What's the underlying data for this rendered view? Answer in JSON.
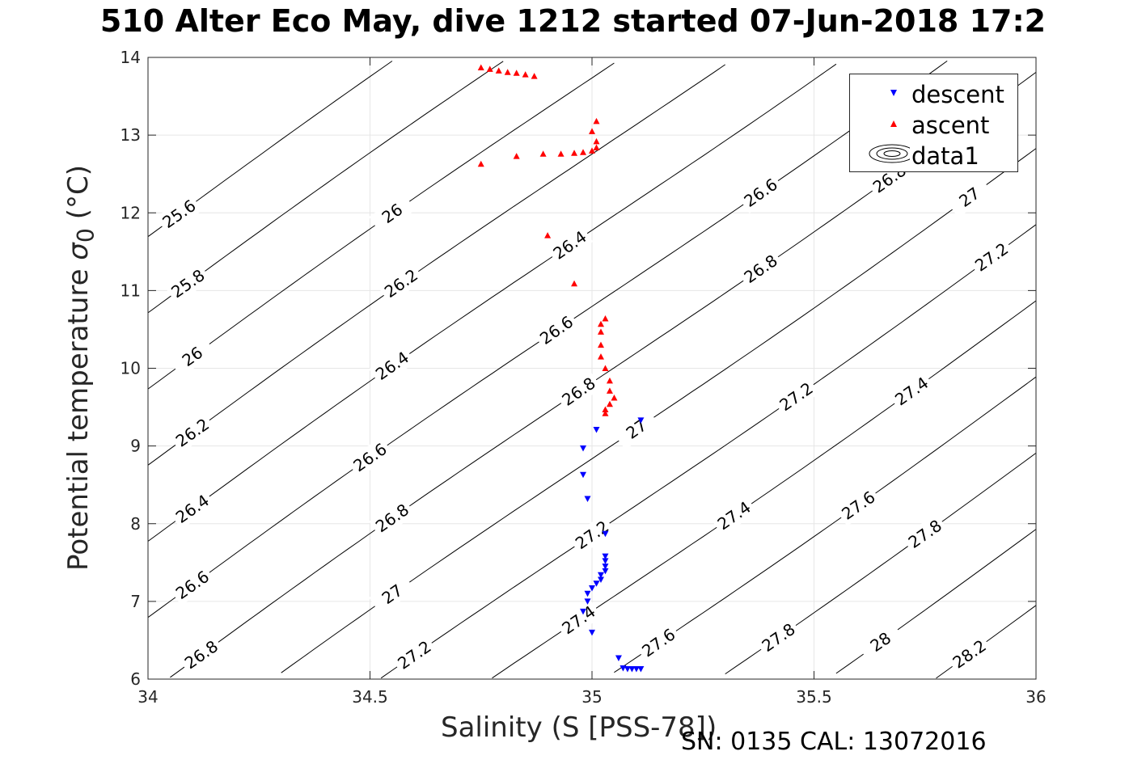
{
  "title": "510 Alter Eco May, dive 1212 started 07-Jun-2018 17:2",
  "footer": "SN: 0135  CAL: 13072016",
  "chart_data": {
    "type": "scatter",
    "title": "510 Alter Eco May, dive 1212 started 07-Jun-2018 17:2",
    "xlabel": "Salinity (S [PSS-78])",
    "ylabel_prefix": "Potential temperature ",
    "ylabel_sigma": "σ",
    "ylabel_sub": "0",
    "ylabel_suffix": " (°C)",
    "xlim": [
      34,
      36
    ],
    "ylim": [
      6,
      14
    ],
    "xticks": [
      "34",
      "34.5",
      "35",
      "35.5",
      "36"
    ],
    "yticks": [
      "6",
      "7",
      "8",
      "9",
      "10",
      "11",
      "12",
      "13",
      "14"
    ],
    "grid": true,
    "legend_position": "top-right",
    "colors": {
      "descent": "#0000ff",
      "ascent": "#ff0000",
      "contour": "#000000"
    },
    "series": [
      {
        "name": "descent",
        "marker": "triangle-down",
        "x": [
          35.11,
          35.01,
          34.98,
          34.98,
          34.99,
          35.03,
          35.03,
          35.03,
          35.03,
          35.03,
          35.02,
          35.02,
          35.01,
          35.0,
          34.99,
          34.99,
          34.98,
          35.0,
          35.06,
          35.07,
          35.08,
          35.09,
          35.1,
          35.11
        ],
        "y": [
          9.33,
          9.21,
          8.97,
          8.63,
          8.32,
          7.87,
          7.58,
          7.52,
          7.45,
          7.39,
          7.34,
          7.28,
          7.23,
          7.17,
          7.1,
          7.0,
          6.87,
          6.6,
          6.27,
          6.14,
          6.13,
          6.13,
          6.13,
          6.13
        ]
      },
      {
        "name": "ascent",
        "marker": "triangle-up",
        "x": [
          34.75,
          34.77,
          34.79,
          34.81,
          34.83,
          34.85,
          34.87,
          35.01,
          35.0,
          35.01,
          35.01,
          35.0,
          34.98,
          34.96,
          34.93,
          34.89,
          34.83,
          34.75,
          34.9,
          34.96,
          35.03,
          35.02,
          35.02,
          35.02,
          35.02,
          35.03,
          35.04,
          35.04,
          35.05,
          35.04,
          35.03,
          35.03
        ],
        "y": [
          13.87,
          13.85,
          13.83,
          13.81,
          13.8,
          13.78,
          13.76,
          13.18,
          13.05,
          12.92,
          12.84,
          12.8,
          12.78,
          12.77,
          12.76,
          12.76,
          12.73,
          12.63,
          11.71,
          11.09,
          10.64,
          10.57,
          10.47,
          10.3,
          10.15,
          10.0,
          9.84,
          9.71,
          9.62,
          9.54,
          9.47,
          9.42
        ]
      }
    ],
    "contour_levels": [
      25.6,
      25.8,
      26,
      26.2,
      26.4,
      26.6,
      26.8,
      27,
      27.2,
      27.4,
      27.6,
      27.8,
      28,
      28.2
    ],
    "contour_labels": [
      "25.6",
      "25.8",
      "26",
      "26.2",
      "26",
      "26.2",
      "26.4",
      "26.6",
      "26.4",
      "26.6",
      "26.8",
      "26.6",
      "26.8",
      "27",
      "26.8",
      "27",
      "27.2",
      "27",
      "27.2",
      "27.4",
      "27.2",
      "27.4",
      "27.6",
      "27.6",
      "27.8",
      "28",
      "28.2",
      "26.6",
      "26.8",
      "27",
      "27.2",
      "27.4",
      "27.6",
      "27.8"
    ],
    "contour_legend_label": "data1"
  }
}
